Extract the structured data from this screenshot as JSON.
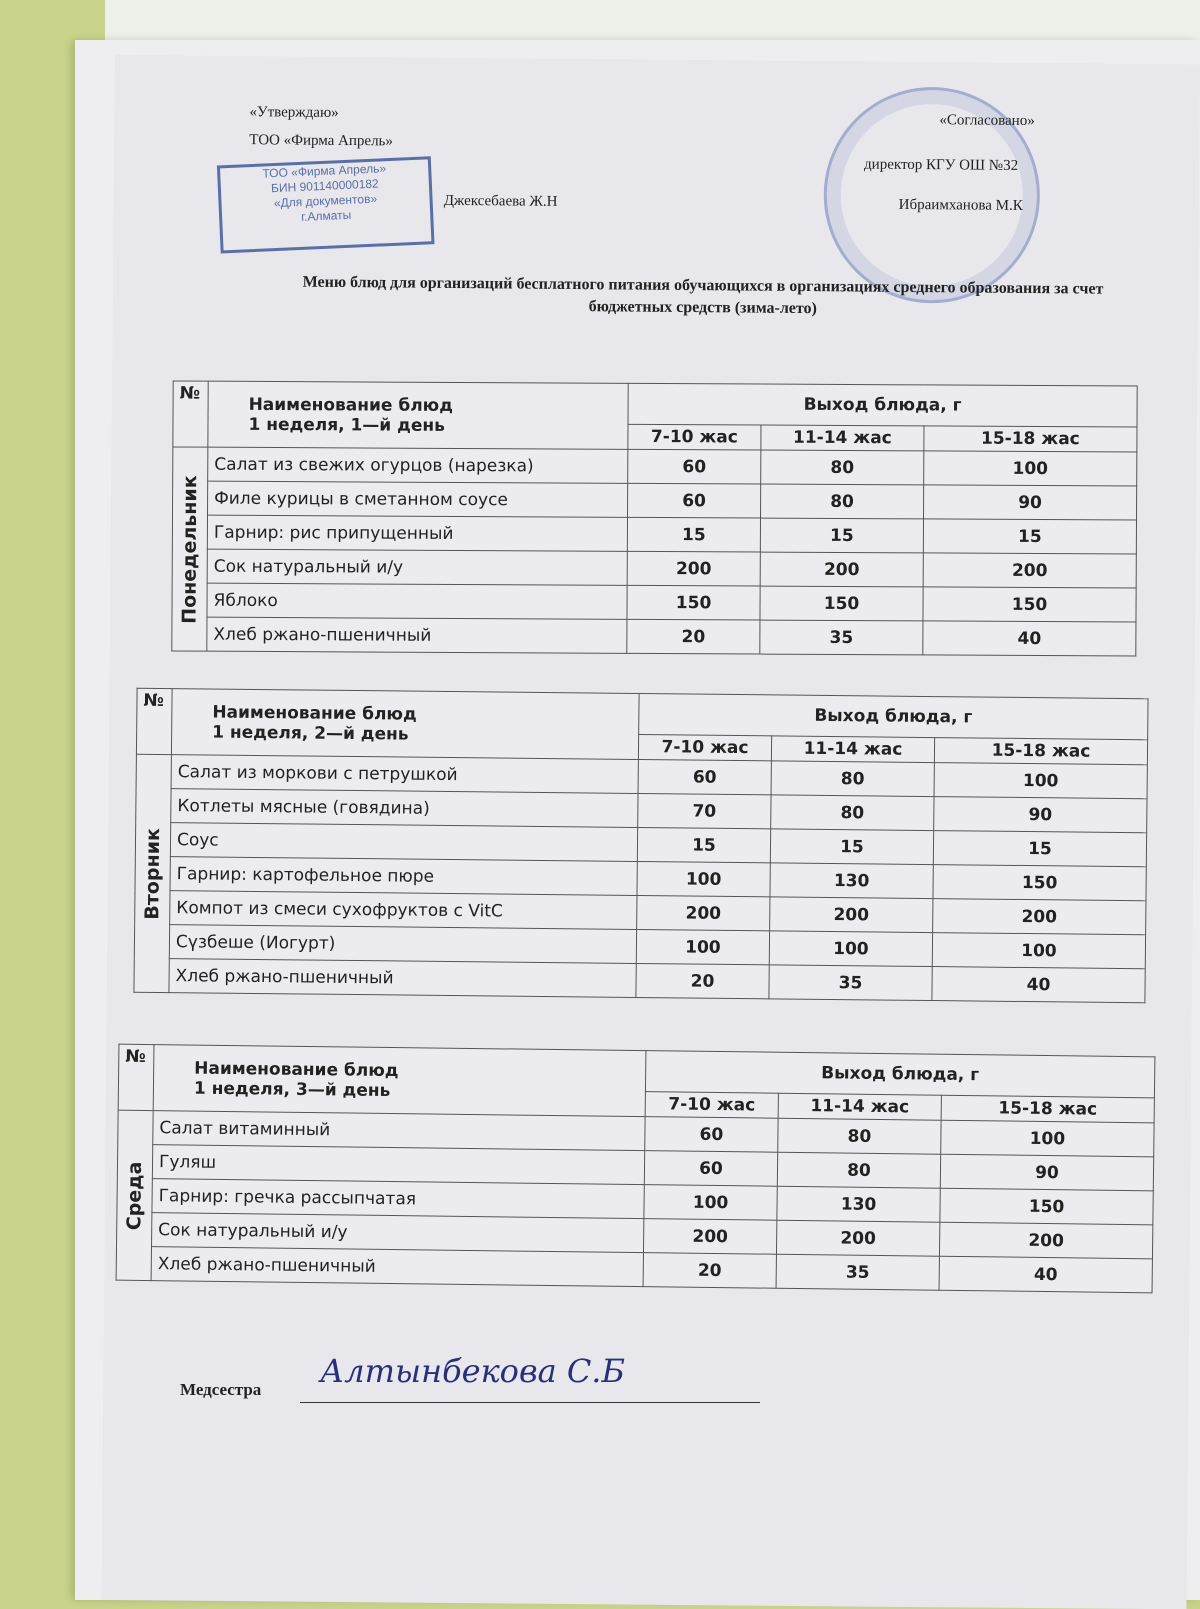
{
  "header": {
    "left_approve": "«Утверждаю»",
    "left_org": "ТОО «Фирма Апрель»",
    "left_name": "Джексебаева Ж.Н",
    "right_agreed": "«Согласовано»",
    "right_role": "директор КГУ ОШ №32",
    "right_name": "Ибраимханова М.К"
  },
  "stamp": {
    "line1": "ТОО «Фирма Апрель»",
    "line2": "БИН 901140000182",
    "line3": "«Для документов»",
    "line4": "г.Алматы"
  },
  "title": "Меню блюд для организаций бесплатного питания обучающихся в организациях среднего образования за счет бюджетных средств (зима-лето)",
  "columns": {
    "num": "№",
    "name_head": "Наименование блюд",
    "yield": "Выход блюда, г",
    "age1": "7-10 жас",
    "age2": "11-14 жас",
    "age3": "15-18 жас"
  },
  "days": [
    {
      "week_day": "1 неделя, 1—й день",
      "day": "Понедельник",
      "rows": [
        [
          "Салат из свежих огурцов (нарезка)",
          "60",
          "80",
          "100"
        ],
        [
          "Филе курицы в сметанном соусе",
          "60",
          "80",
          "90"
        ],
        [
          "Гарнир: рис припущенный",
          "15",
          "15",
          "15"
        ],
        [
          "Сок натуральный и/у",
          "200",
          "200",
          "200"
        ],
        [
          "Яблоко",
          "150",
          "150",
          "150"
        ],
        [
          "Хлеб ржано-пшеничный",
          "20",
          "35",
          "40"
        ]
      ]
    },
    {
      "week_day": "1 неделя, 2—й день",
      "day": "Вторник",
      "rows": [
        [
          "Салат из моркови с петрушкой",
          "60",
          "80",
          "100"
        ],
        [
          "Котлеты мясные (говядина)",
          "70",
          "80",
          "90"
        ],
        [
          "Соус",
          "15",
          "15",
          "15"
        ],
        [
          "Гарнир: картофельное пюре",
          "100",
          "130",
          "150"
        ],
        [
          "Компот из смеси сухофруктов с VitC",
          "200",
          "200",
          "200"
        ],
        [
          "Сүзбеше (Иогурт)",
          "100",
          "100",
          "100"
        ],
        [
          "Хлеб ржано-пшеничный",
          "20",
          "35",
          "40"
        ]
      ]
    },
    {
      "week_day": "1 неделя, 3—й день",
      "day": "Среда",
      "rows": [
        [
          "Салат витаминный",
          "60",
          "80",
          "100"
        ],
        [
          "Гуляш",
          "60",
          "80",
          "90"
        ],
        [
          "Гарнир: гречка рассыпчатая",
          "100",
          "130",
          "150"
        ],
        [
          "Сок натуральный и/у",
          "200",
          "200",
          "200"
        ],
        [
          "Хлеб ржано-пшеничный",
          "20",
          "35",
          "40"
        ]
      ]
    }
  ],
  "footer": {
    "nurse_label": "Медсестра",
    "nurse_signature": "Алтынбекова С.Б"
  }
}
